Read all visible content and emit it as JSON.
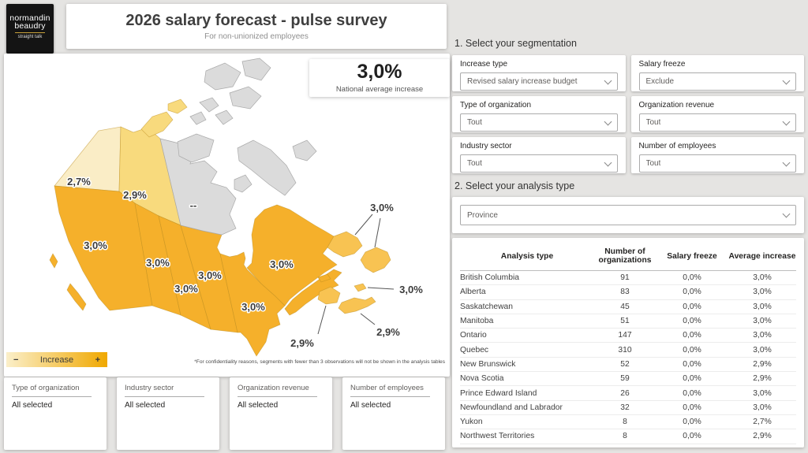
{
  "header": {
    "logo_line1": "normandin",
    "logo_line2": "beaudry",
    "logo_tagline": "straight talk",
    "title": "2026 salary forecast - pulse survey",
    "subtitle": "For non-unionized employees"
  },
  "kpi": {
    "value": "3,0%",
    "label": "National average increase"
  },
  "map": {
    "labels": {
      "yukon": "2,7%",
      "northwest_territories": "2,9%",
      "nunavut": "--",
      "british_columbia": "3,0%",
      "alberta": "3,0%",
      "saskatchewan": "3,0%",
      "manitoba": "3,0%",
      "ontario": "3,0%",
      "quebec": "3,0%",
      "newfoundland_and_labrador": "3,0%",
      "prince_edward_island": "3,0%",
      "nova_scotia": "2,9%",
      "new_brunswick": "2,9%"
    },
    "legend": {
      "minus": "−",
      "label": "Increase",
      "plus": "+"
    },
    "footnote": "*For confidentiality reasons, segments with fewer than 3 observations will not be shown in the analysis tables"
  },
  "segmentation": {
    "section_title": "1. Select your segmentation",
    "filters": [
      {
        "label": "Increase type",
        "value": "Revised salary increase budget"
      },
      {
        "label": "Salary freeze",
        "value": "Exclude"
      },
      {
        "label": "Type of organization",
        "value": "Tout"
      },
      {
        "label": "Organization revenue",
        "value": "Tout"
      },
      {
        "label": "Industry sector",
        "value": "Tout"
      },
      {
        "label": "Number of employees",
        "value": "Tout"
      }
    ]
  },
  "analysis": {
    "section_title": "2. Select your analysis type",
    "value": "Province"
  },
  "table": {
    "columns": [
      "Analysis type",
      "Number of organizations",
      "Salary freeze",
      "Average increase"
    ],
    "rows": [
      {
        "name": "British Columbia",
        "orgs": "91",
        "freeze": "0,0%",
        "increase": "3,0%"
      },
      {
        "name": "Alberta",
        "orgs": "83",
        "freeze": "0,0%",
        "increase": "3,0%"
      },
      {
        "name": "Saskatchewan",
        "orgs": "45",
        "freeze": "0,0%",
        "increase": "3,0%"
      },
      {
        "name": "Manitoba",
        "orgs": "51",
        "freeze": "0,0%",
        "increase": "3,0%"
      },
      {
        "name": "Ontario",
        "orgs": "147",
        "freeze": "0,0%",
        "increase": "3,0%"
      },
      {
        "name": "Quebec",
        "orgs": "310",
        "freeze": "0,0%",
        "increase": "3,0%"
      },
      {
        "name": "New Brunswick",
        "orgs": "52",
        "freeze": "0,0%",
        "increase": "2,9%"
      },
      {
        "name": "Nova Scotia",
        "orgs": "59",
        "freeze": "0,0%",
        "increase": "2,9%"
      },
      {
        "name": "Prince Edward Island",
        "orgs": "26",
        "freeze": "0,0%",
        "increase": "3,0%"
      },
      {
        "name": "Newfoundland and Labrador",
        "orgs": "32",
        "freeze": "0,0%",
        "increase": "3,0%"
      },
      {
        "name": "Yukon",
        "orgs": "8",
        "freeze": "0,0%",
        "increase": "2,7%"
      },
      {
        "name": "Northwest Territories",
        "orgs": "8",
        "freeze": "0,0%",
        "increase": "2,9%"
      }
    ]
  },
  "bottom_filters": [
    {
      "label": "Type of organization",
      "value": "All selected"
    },
    {
      "label": "Industry sector",
      "value": "All selected"
    },
    {
      "label": "Organization revenue",
      "value": "All selected"
    },
    {
      "label": "Number of employees",
      "value": "All selected"
    }
  ],
  "colors": {
    "map_strong": "#F5B02B",
    "map_atlantic": "#F8C352",
    "map_nwt": "#F8DA7D",
    "map_yukon": "#FAEDC6",
    "map_empty": "#DBDBDB",
    "legend_from": "#FBEFC9",
    "legend_to": "#F0A800",
    "logo_gold": "#C8A13A"
  }
}
